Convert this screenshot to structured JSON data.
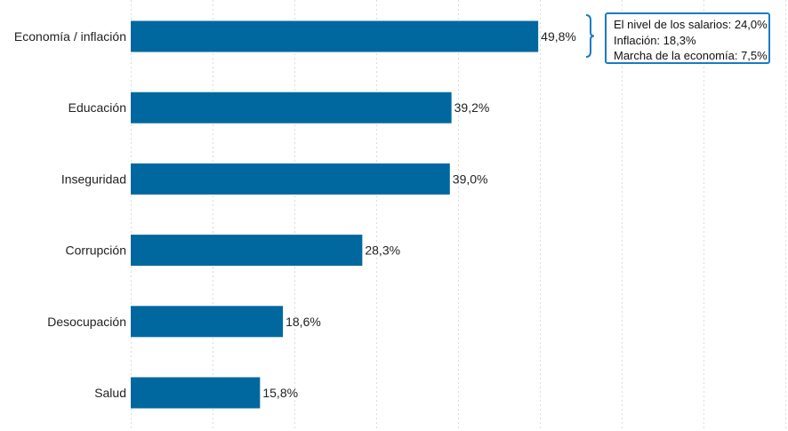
{
  "chart_data": {
    "type": "bar",
    "orientation": "horizontal",
    "categories": [
      "Economía / inflación",
      "Educación",
      "Inseguridad",
      "Corrupción",
      "Desocupación",
      "Salud"
    ],
    "values": [
      49.8,
      39.2,
      39.0,
      28.3,
      18.6,
      15.8
    ],
    "value_labels": [
      "49,8%",
      "39,2%",
      "39,0%",
      "28,3%",
      "18,6%",
      "15,8%"
    ],
    "title": "",
    "xlabel": "",
    "ylabel": "",
    "xlim": [
      0,
      80
    ],
    "grid": true,
    "bar_color": "#00689e",
    "annotation": {
      "attached_to": "Economía / inflación",
      "lines": [
        "El nivel de los salarios: 24,0%",
        "Inflación: 18,3%",
        "Marcha de la economía: 7,5%"
      ],
      "border_color": "#1a7bc4"
    }
  }
}
